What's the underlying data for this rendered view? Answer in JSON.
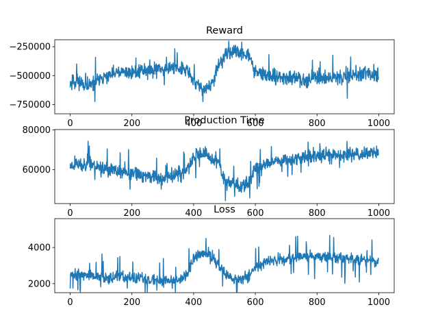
{
  "chart_data": [
    {
      "type": "line",
      "title": "Reward",
      "color": "#1f77b4",
      "xlim": [
        -50,
        1050
      ],
      "ylim": [
        -830000,
        -190000
      ],
      "xticks": [
        0,
        200,
        400,
        600,
        800,
        1000
      ],
      "xtick_labels": [
        "0",
        "200",
        "400",
        "600",
        "800",
        "1000"
      ],
      "yticks": [
        -750000,
        -500000,
        -250000
      ],
      "ytick_labels": [
        "−750000",
        "−500000",
        "−250000"
      ],
      "trend": {
        "x": [
          0,
          20,
          40,
          60,
          80,
          100,
          150,
          200,
          250,
          300,
          350,
          380,
          400,
          420,
          440,
          460,
          480,
          500,
          520,
          540,
          560,
          580,
          600,
          650,
          700,
          750,
          800,
          850,
          900,
          950,
          1000
        ],
        "y": [
          -560000,
          -540000,
          -560000,
          -600000,
          -560000,
          -530000,
          -480000,
          -470000,
          -450000,
          -440000,
          -430000,
          -460000,
          -540000,
          -600000,
          -620000,
          -560000,
          -430000,
          -330000,
          -300000,
          -300000,
          -300000,
          -330000,
          -470000,
          -510000,
          -520000,
          -530000,
          -520000,
          -520000,
          -500000,
          -490000,
          -490000
        ]
      },
      "noise_amplitude": 60000,
      "spike_rate": 0.04,
      "spike_amplitude": 120000,
      "seed": 11
    },
    {
      "type": "line",
      "title": "Production Time",
      "color": "#1f77b4",
      "xlim": [
        -50,
        1050
      ],
      "ylim": [
        43000,
        80200
      ],
      "xticks": [
        0,
        200,
        400,
        600,
        800,
        1000
      ],
      "xtick_labels": [
        "0",
        "200",
        "400",
        "600",
        "800",
        "1000"
      ],
      "yticks": [
        60000,
        80000
      ],
      "ytick_labels": [
        "60000",
        "80000"
      ],
      "trend": {
        "x": [
          0,
          20,
          40,
          60,
          80,
          100,
          150,
          200,
          250,
          300,
          350,
          380,
          400,
          420,
          440,
          460,
          480,
          500,
          520,
          540,
          560,
          580,
          600,
          650,
          700,
          750,
          800,
          850,
          900,
          950,
          1000
        ],
        "y": [
          62000,
          63000,
          62000,
          64000,
          62000,
          61000,
          59000,
          58000,
          57000,
          56000,
          58000,
          60000,
          66000,
          68000,
          67000,
          65000,
          64000,
          55000,
          53000,
          52000,
          52000,
          54000,
          61000,
          64000,
          65000,
          66000,
          67000,
          67000,
          68000,
          68000,
          69000
        ]
      },
      "noise_amplitude": 3500,
      "spike_rate": 0.04,
      "spike_amplitude": 7000,
      "seed": 23
    },
    {
      "type": "line",
      "title": "Loss",
      "color": "#1f77b4",
      "xlim": [
        -50,
        1050
      ],
      "ylim": [
        1500,
        5600
      ],
      "xticks": [
        0,
        200,
        400,
        600,
        800,
        1000
      ],
      "xtick_labels": [
        "0",
        "200",
        "400",
        "600",
        "800",
        "1000"
      ],
      "yticks": [
        2000,
        4000
      ],
      "ytick_labels": [
        "2000",
        "4000"
      ],
      "trend": {
        "x": [
          0,
          20,
          40,
          60,
          80,
          100,
          150,
          200,
          250,
          300,
          350,
          380,
          400,
          420,
          440,
          460,
          480,
          500,
          520,
          540,
          560,
          580,
          600,
          650,
          700,
          750,
          800,
          850,
          900,
          950,
          1000
        ],
        "y": [
          2600,
          2500,
          2450,
          2450,
          2400,
          2350,
          2350,
          2300,
          2250,
          2150,
          2250,
          2500,
          3400,
          3650,
          3650,
          3400,
          3100,
          2600,
          2300,
          2250,
          2300,
          2450,
          2900,
          3300,
          3400,
          3450,
          3500,
          3450,
          3400,
          3300,
          3250
        ]
      },
      "noise_amplitude": 300,
      "spike_rate": 0.04,
      "spike_amplitude": 900,
      "seed": 37
    }
  ]
}
